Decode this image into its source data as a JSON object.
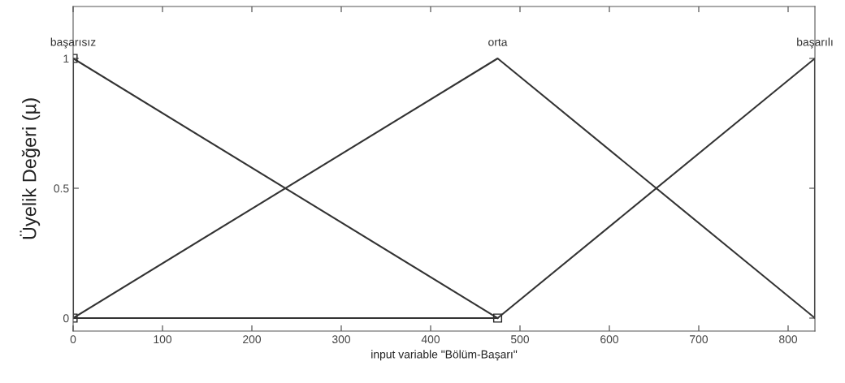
{
  "chart_data": {
    "type": "line",
    "xlabel": "input variable \"Bölüm-Başarı\"",
    "ylabel": "Üyelik Değeri (µ)",
    "series": [
      {
        "name": "başarısız",
        "color": "#333333",
        "x": [
          0,
          0,
          475
        ],
        "values": [
          0,
          1,
          0
        ],
        "marker": "square"
      },
      {
        "name": "orta",
        "color": "#333333",
        "x": [
          0,
          475,
          830
        ],
        "values": [
          0,
          1,
          0
        ]
      },
      {
        "name": "başarılı",
        "color": "#333333",
        "x": [
          0,
          475,
          830,
          830
        ],
        "values": [
          0,
          0,
          1,
          0
        ]
      }
    ],
    "xlim": [
      0,
      830
    ],
    "xticks": [
      0,
      100,
      200,
      300,
      400,
      500,
      600,
      700,
      800
    ],
    "ylim": [
      -0.05,
      1.2
    ],
    "yticks": [
      0,
      0.5,
      1
    ],
    "grid": false,
    "legend": false,
    "line_style": "solid"
  }
}
